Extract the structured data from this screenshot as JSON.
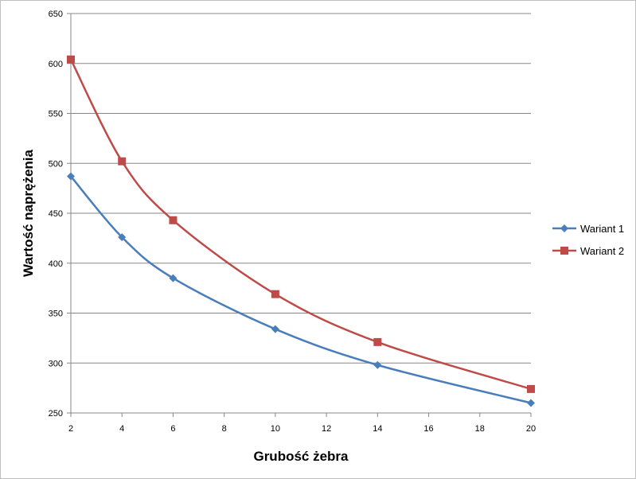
{
  "chart_data": {
    "type": "line",
    "title": "",
    "xlabel": "Grubość żebra",
    "ylabel": "Wartość naprężenia",
    "x_ticks": [
      "2",
      "4",
      "6",
      "8",
      "10",
      "12",
      "14",
      "16",
      "18",
      "20"
    ],
    "y_ticks": [
      "250",
      "300",
      "350",
      "400",
      "450",
      "500",
      "550",
      "600",
      "650"
    ],
    "xlim": [
      2,
      20
    ],
    "ylim": [
      250,
      650
    ],
    "grid": "horizontal",
    "legend_position": "right",
    "series": [
      {
        "name": "Wariant 1",
        "color": "#4a7ebb",
        "marker": "diamond",
        "x": [
          2,
          4,
          6,
          10,
          14,
          20
        ],
        "y": [
          487,
          426,
          385,
          334,
          298,
          260
        ]
      },
      {
        "name": "Wariant 2",
        "color": "#be4b48",
        "marker": "square",
        "x": [
          2,
          4,
          6,
          10,
          14,
          20
        ],
        "y": [
          604,
          502,
          443,
          369,
          321,
          274
        ]
      }
    ]
  }
}
